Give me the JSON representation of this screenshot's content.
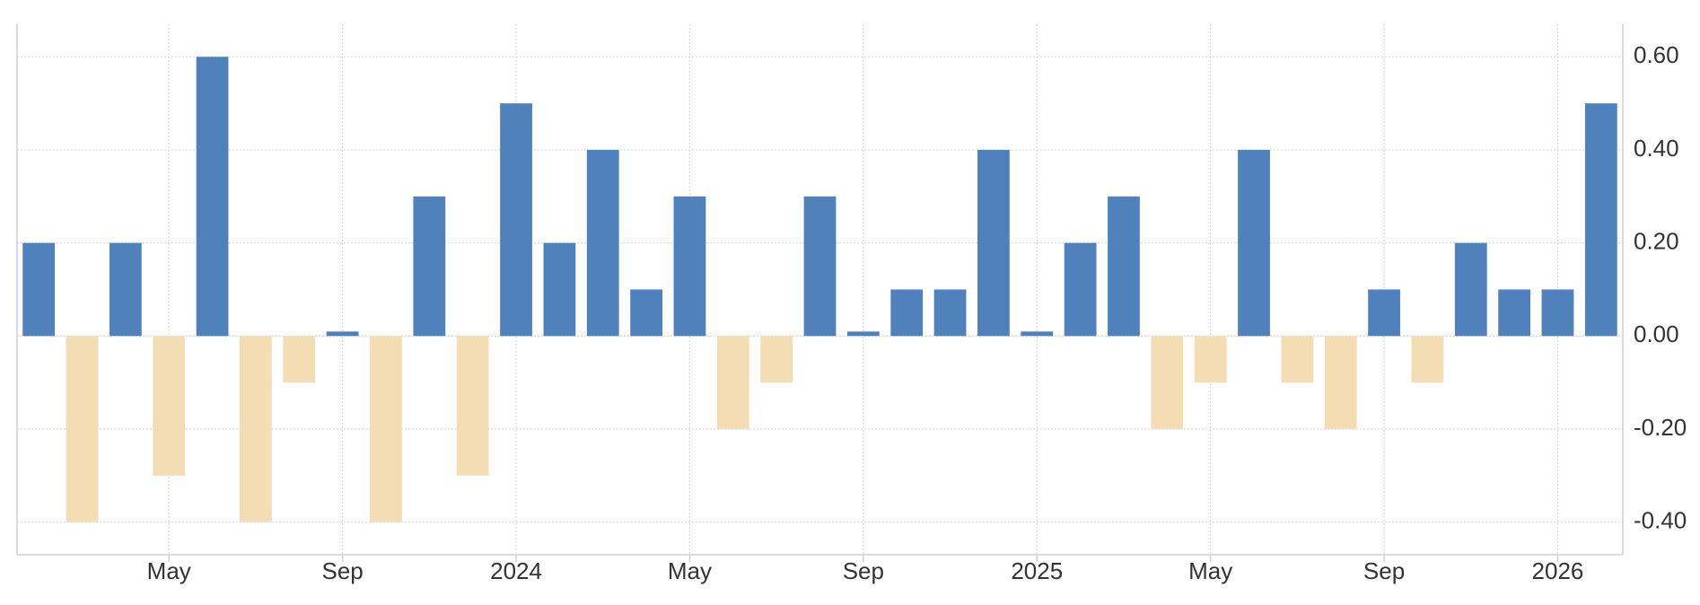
{
  "chart_data": {
    "type": "bar",
    "categories": [
      null,
      null,
      null,
      "May",
      null,
      null,
      null,
      "Sep",
      null,
      null,
      null,
      "2024",
      null,
      null,
      null,
      "May",
      null,
      null,
      null,
      "Sep",
      null,
      null,
      null,
      "2025",
      null,
      null,
      null,
      "May",
      null,
      null,
      null,
      "Sep",
      null,
      null,
      null,
      "2026",
      null
    ],
    "values": [
      0.2,
      -0.4,
      0.2,
      -0.3,
      0.6,
      -0.4,
      -0.1,
      0,
      -0.4,
      0.3,
      -0.3,
      0.5,
      0.2,
      0.4,
      0.1,
      0.3,
      -0.2,
      -0.1,
      0.3,
      0,
      0.1,
      0.1,
      0.4,
      0,
      0.2,
      0.3,
      -0.2,
      -0.1,
      0.4,
      -0.1,
      -0.2,
      0.1,
      -0.1,
      0.2,
      0.1,
      0.1,
      0.5
    ],
    "color": "#4f81bd",
    "negative_color": "#f5ddb3",
    "ylim": [
      -0.47,
      0.67
    ],
    "yticks": [
      {
        "value": 0.6,
        "label": "0.60"
      },
      {
        "value": 0.4,
        "label": "0.40"
      },
      {
        "value": 0.2,
        "label": "0.20"
      },
      {
        "value": 0,
        "label": "0.00"
      },
      {
        "value": -0.2,
        "label": "-0.20"
      },
      {
        "value": -0.4,
        "label": "-0.40"
      }
    ],
    "grid": true,
    "y_axis_side": "right"
  }
}
